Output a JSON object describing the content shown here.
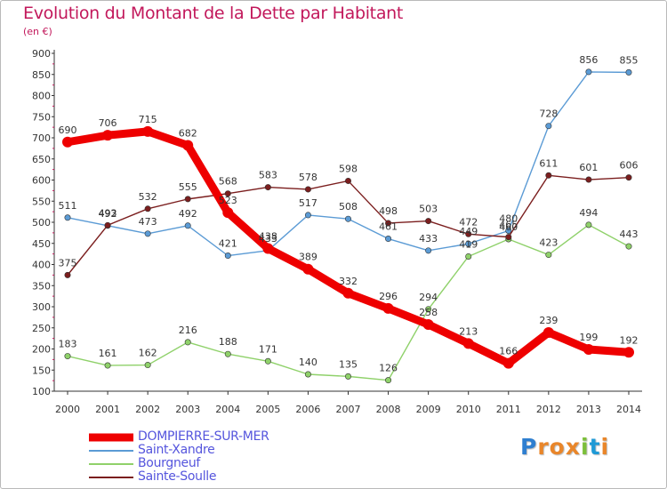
{
  "chart_data": {
    "type": "line",
    "title": "Evolution du Montant de la Dette par Habitant",
    "subtitle": "(en €)",
    "xlabel": "",
    "ylabel": "",
    "x": [
      "2000",
      "2001",
      "2002",
      "2003",
      "2004",
      "2005",
      "2006",
      "2007",
      "2008",
      "2009",
      "2010",
      "2011",
      "2012",
      "2013",
      "2014"
    ],
    "ylim": [
      100,
      900
    ],
    "yticks": [
      100,
      150,
      200,
      250,
      300,
      350,
      400,
      450,
      500,
      550,
      600,
      650,
      700,
      750,
      800,
      850,
      900
    ],
    "grid": false,
    "legend_position": "bottom-left",
    "series": [
      {
        "name": "DOMPIERRE-SUR-MER",
        "color": "#ee0000",
        "values": [
          690,
          706,
          715,
          682,
          523,
          438,
          389,
          332,
          296,
          258,
          213,
          166,
          239,
          199,
          192
        ]
      },
      {
        "name": "Saint-Xandre",
        "color": "#5b9bd5",
        "values": [
          511,
          492,
          473,
          492,
          421,
          433,
          517,
          508,
          461,
          433,
          449,
          480,
          728,
          856,
          855
        ]
      },
      {
        "name": "Bourgneuf",
        "color": "#8fd16a",
        "values": [
          183,
          161,
          162,
          216,
          188,
          171,
          140,
          135,
          126,
          294,
          419,
          460,
          423,
          494,
          443
        ]
      },
      {
        "name": "Sainte-Soulle",
        "color": "#7b1e1e",
        "values": [
          375,
          493,
          532,
          555,
          568,
          583,
          578,
          598,
          498,
          503,
          472,
          465,
          611,
          601,
          606
        ]
      }
    ]
  },
  "brand": {
    "letters": [
      "P",
      "r",
      "o",
      "x",
      "i",
      "t",
      "i"
    ],
    "colors": [
      "#2f7fd0",
      "#e9862a",
      "#e9862a",
      "#e9862a",
      "#7cbf3a",
      "#1f9ad6",
      "#e9862a"
    ]
  }
}
